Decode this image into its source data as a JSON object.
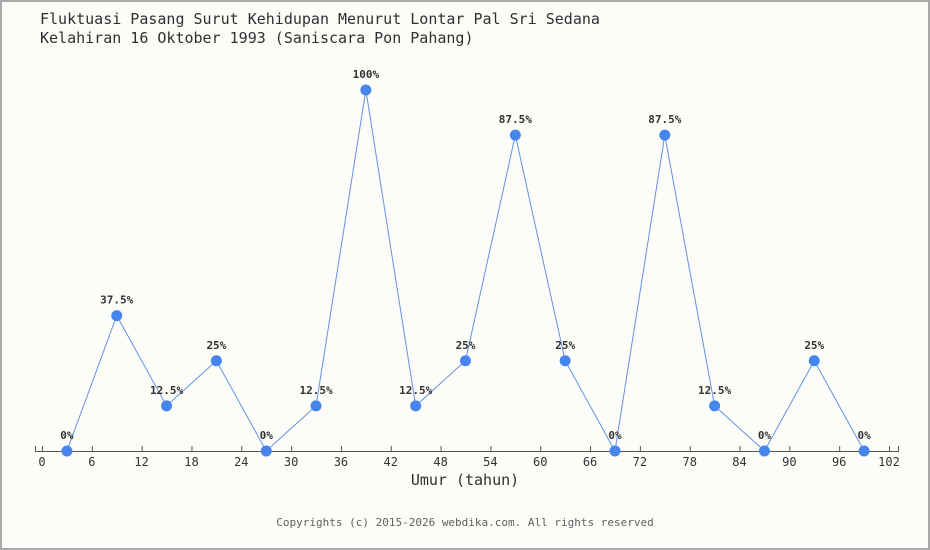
{
  "title": {
    "line1": "Fluktuasi Pasang Surut Kehidupan Menurut Lontar Pal Sri Sedana",
    "line2": "Kelahiran 16 Oktober 1993 (Saniscara Pon Pahang)"
  },
  "chart_data": {
    "type": "line",
    "x": [
      3,
      9,
      15,
      21,
      27,
      33,
      39,
      45,
      51,
      57,
      63,
      69,
      75,
      81,
      87,
      93,
      99
    ],
    "values": [
      0,
      37.5,
      12.5,
      25,
      0,
      12.5,
      100,
      12.5,
      25,
      87.5,
      25,
      0,
      87.5,
      12.5,
      0,
      25,
      0
    ],
    "point_labels": [
      "0%",
      "37.5%",
      "12.5%",
      "25%",
      "0%",
      "12.5%",
      "100%",
      "12.5%",
      "25%",
      "87.5%",
      "25%",
      "0%",
      "87.5%",
      "12.5%",
      "0%",
      "25%",
      "0%"
    ],
    "x_ticks": [
      0,
      6,
      12,
      18,
      24,
      30,
      36,
      42,
      48,
      54,
      60,
      66,
      72,
      78,
      84,
      90,
      96,
      102
    ],
    "xlabel": "Umur (tahun)",
    "ylabel": "",
    "xlim": [
      0,
      102
    ],
    "ylim": [
      0,
      100
    ],
    "grid": false,
    "legend": "none"
  },
  "colors": {
    "line": "#6593dd",
    "marker": "#4685ee",
    "axis": "#555555",
    "tick_text": "#333333",
    "point_label_text": "#333333",
    "background": "#fcfcf9",
    "border": "#a9a9a9",
    "title_text": "#2f2f2f",
    "footer_text": "#606060"
  },
  "footer": {
    "copyright": "Copyrights (c) 2015-2026 webdika.com. All rights reserved"
  }
}
